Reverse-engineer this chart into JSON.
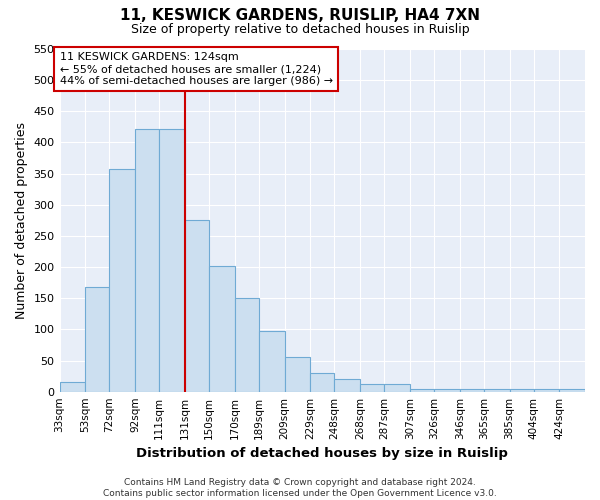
{
  "title1": "11, KESWICK GARDENS, RUISLIP, HA4 7XN",
  "title2": "Size of property relative to detached houses in Ruislip",
  "xlabel": "Distribution of detached houses by size in Ruislip",
  "ylabel": "Number of detached properties",
  "annotation_line1": "11 KESWICK GARDENS: 124sqm",
  "annotation_line2": "← 55% of detached houses are smaller (1,224)",
  "annotation_line3": "44% of semi-detached houses are larger (986) →",
  "bar_edges": [
    33,
    53,
    72,
    92,
    111,
    131,
    150,
    170,
    189,
    209,
    229,
    248,
    268,
    287,
    307,
    326,
    346,
    365,
    385,
    404,
    424
  ],
  "bar_heights": [
    15,
    168,
    358,
    422,
    422,
    275,
    202,
    150,
    97,
    55,
    30,
    20,
    13,
    13,
    5,
    5,
    5,
    5,
    5,
    5,
    5
  ],
  "bar_facecolor": "#ccdff0",
  "bar_edgecolor": "#6faad4",
  "vline_x": 131,
  "vline_color": "#cc0000",
  "ylim": [
    0,
    550
  ],
  "yticks": [
    0,
    50,
    100,
    150,
    200,
    250,
    300,
    350,
    400,
    450,
    500,
    550
  ],
  "fig_bg_color": "#ffffff",
  "plot_bg_color": "#e8eef8",
  "footer": "Contains HM Land Registry data © Crown copyright and database right 2024.\nContains public sector information licensed under the Open Government Licence v3.0.",
  "title1_fontsize": 11,
  "title2_fontsize": 9,
  "annotation_box_edgecolor": "#cc0000",
  "grid_color": "#ffffff"
}
